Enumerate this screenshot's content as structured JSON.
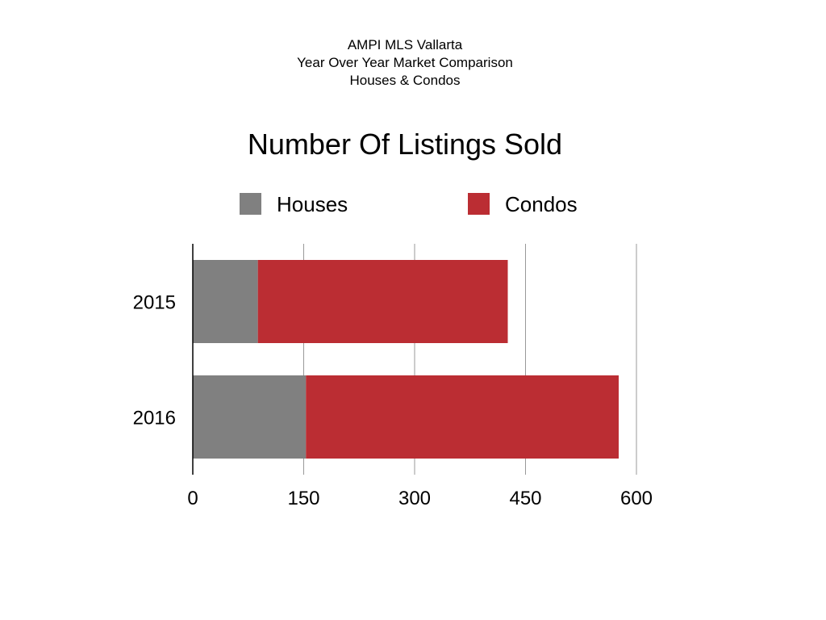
{
  "header": {
    "line1": "AMPI MLS Vallarta",
    "line2": "Year Over Year Market Comparison",
    "line3": "Houses & Condos"
  },
  "colors": {
    "houses": "#808080",
    "condos": "#bb2d33",
    "gridline": "#999999",
    "axis": "#000000"
  },
  "chart_data": {
    "type": "bar",
    "orientation": "horizontal",
    "stacked": true,
    "title": "Number Of Listings Sold",
    "categories": [
      "2015",
      "2016"
    ],
    "series": [
      {
        "name": "Houses",
        "color": "#808080",
        "values": [
          88,
          153
        ]
      },
      {
        "name": "Condos",
        "color": "#bb2d33",
        "values": [
          338,
          423
        ]
      }
    ],
    "xlim": [
      0,
      600
    ],
    "xticks": [
      0,
      150,
      300,
      450,
      600
    ],
    "xlabel": "",
    "ylabel": "",
    "grid": true,
    "legend_position": "top"
  }
}
